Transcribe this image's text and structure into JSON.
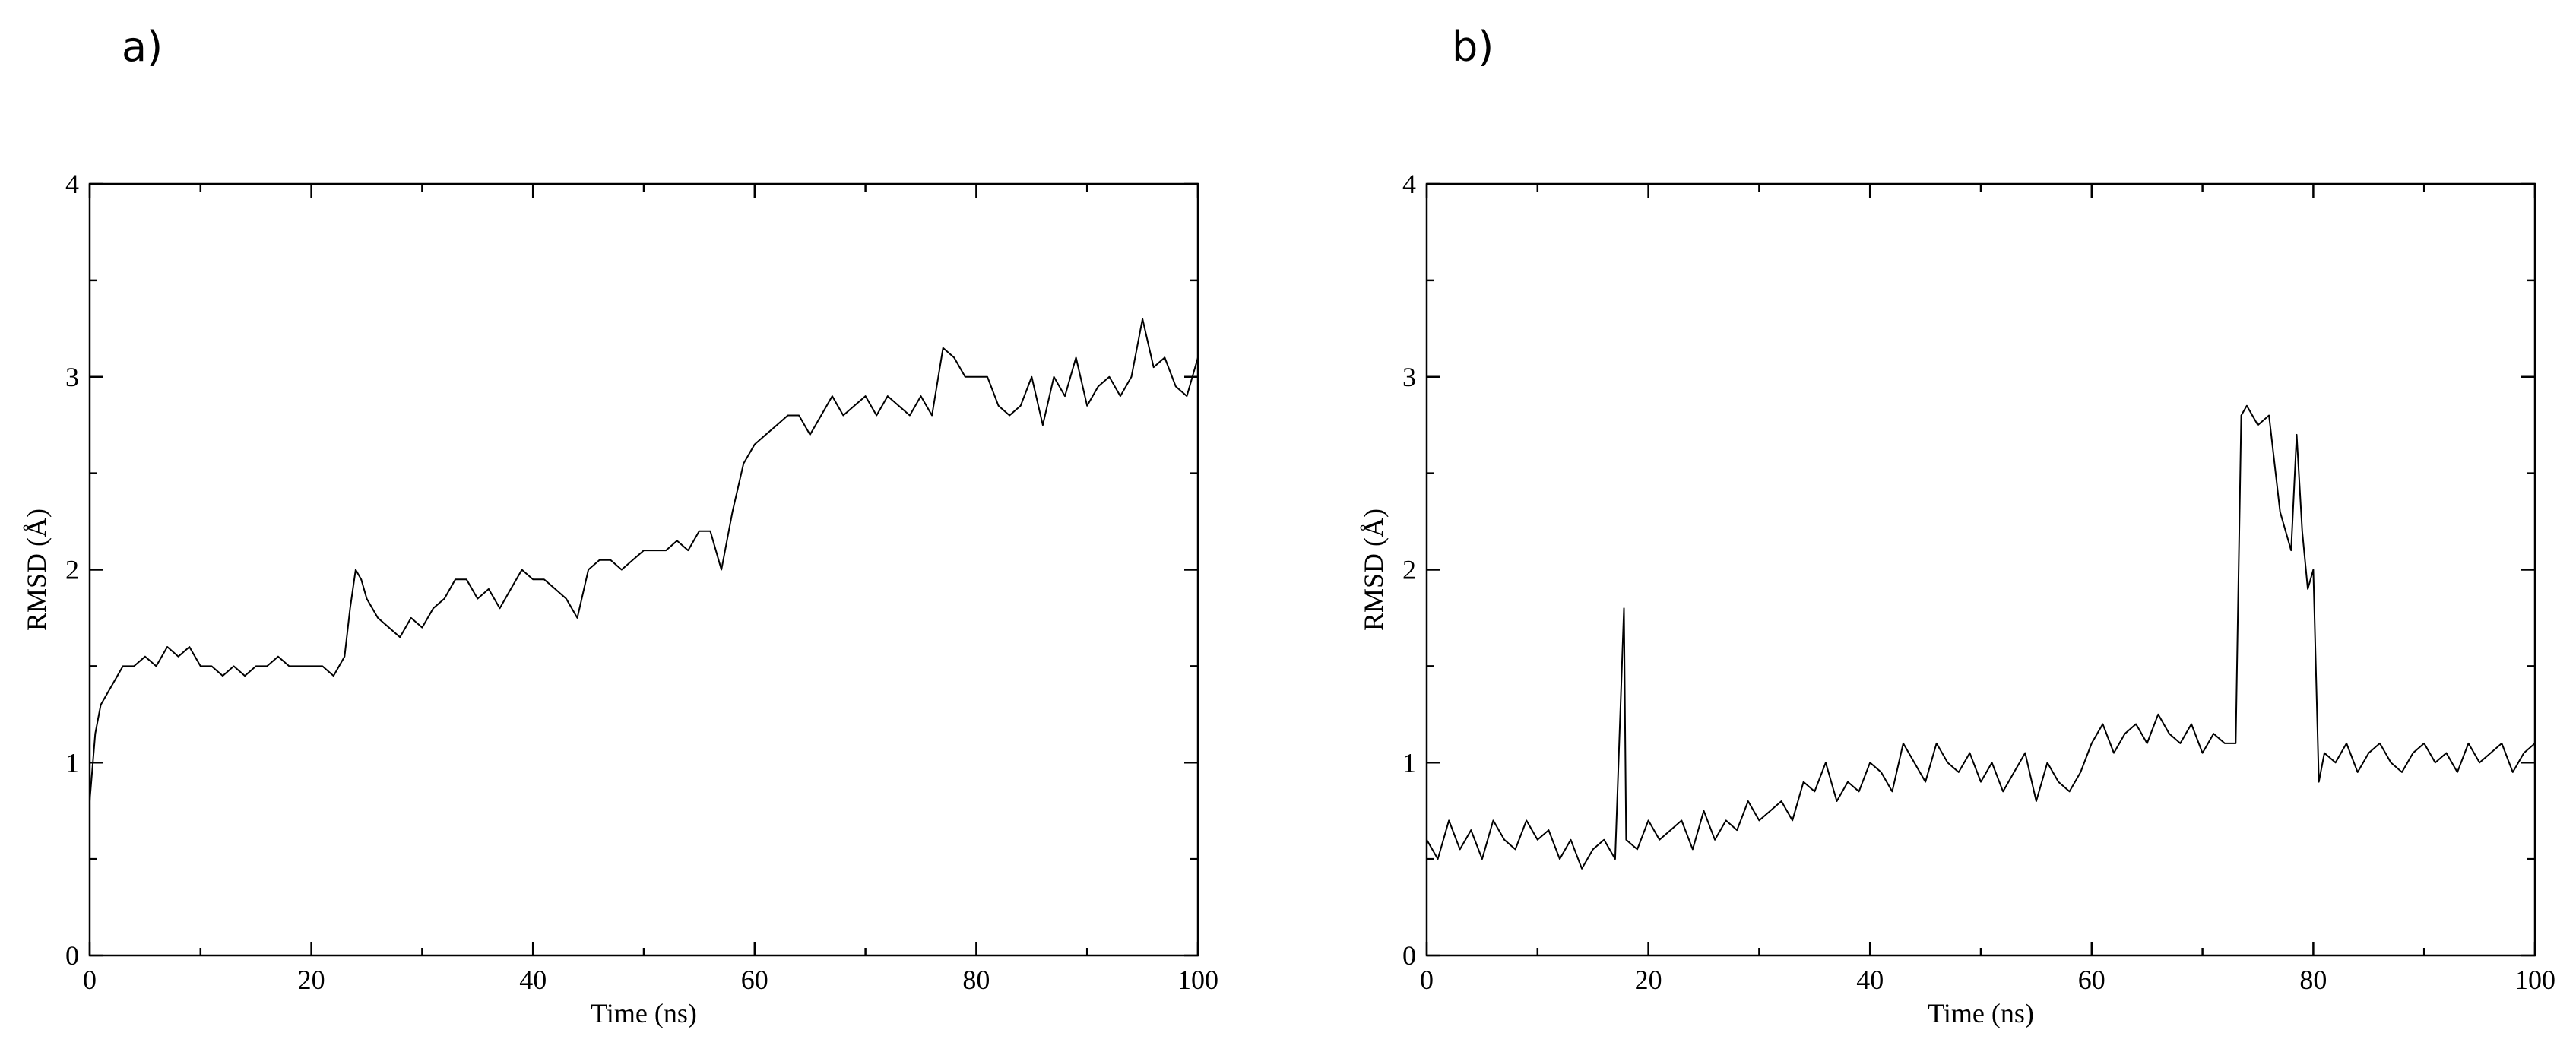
{
  "panels": [
    {
      "letter": "a)"
    },
    {
      "letter": "b)"
    }
  ],
  "chart_data": [
    {
      "type": "line",
      "panel": "a)",
      "title": "",
      "xlabel": "Time (ns)",
      "ylabel": "RMSD (Å)",
      "xlim": [
        0,
        100
      ],
      "ylim": [
        0,
        4
      ],
      "xticks": [
        0,
        20,
        40,
        60,
        80,
        100
      ],
      "xtick_labels": [
        "0",
        "20",
        "40",
        "60",
        "80",
        "100"
      ],
      "yticks": [
        0,
        1,
        2,
        3,
        4
      ],
      "ytick_labels": [
        "0",
        "1",
        "2",
        "3",
        "4"
      ],
      "grid": false,
      "legend": "none",
      "series_color": "#000000",
      "x": [
        0,
        0.5,
        1,
        2,
        3,
        4,
        5,
        6,
        7,
        8,
        9,
        10,
        11,
        12,
        13,
        14,
        15,
        16,
        17,
        18,
        19,
        20,
        21,
        22,
        23,
        23.5,
        24,
        24.5,
        25,
        26,
        27,
        28,
        29,
        30,
        31,
        32,
        33,
        34,
        35,
        36,
        37,
        38,
        39,
        40,
        41,
        42,
        43,
        44,
        45,
        46,
        47,
        48,
        49,
        50,
        51,
        52,
        53,
        54,
        55,
        56,
        57,
        58,
        59,
        60,
        61,
        62,
        63,
        64,
        65,
        66,
        67,
        68,
        69,
        70,
        71,
        72,
        73,
        74,
        75,
        76,
        77,
        78,
        79,
        80,
        81,
        82,
        83,
        84,
        85,
        86,
        87,
        88,
        89,
        90,
        91,
        92,
        93,
        94,
        95,
        96,
        97,
        98,
        99,
        100
      ],
      "y": [
        0.8,
        1.15,
        1.3,
        1.4,
        1.5,
        1.5,
        1.55,
        1.5,
        1.6,
        1.55,
        1.6,
        1.5,
        1.5,
        1.45,
        1.5,
        1.45,
        1.5,
        1.5,
        1.55,
        1.5,
        1.5,
        1.5,
        1.5,
        1.45,
        1.55,
        1.8,
        2.0,
        1.95,
        1.85,
        1.75,
        1.7,
        1.65,
        1.75,
        1.7,
        1.8,
        1.85,
        1.95,
        1.95,
        1.85,
        1.9,
        1.8,
        1.9,
        2.0,
        1.95,
        1.95,
        1.9,
        1.85,
        1.75,
        2.0,
        2.05,
        2.05,
        2.0,
        2.05,
        2.1,
        2.1,
        2.1,
        2.15,
        2.1,
        2.2,
        2.2,
        2.0,
        2.3,
        2.55,
        2.65,
        2.7,
        2.75,
        2.8,
        2.8,
        2.7,
        2.8,
        2.9,
        2.8,
        2.85,
        2.9,
        2.8,
        2.9,
        2.85,
        2.8,
        2.9,
        2.8,
        3.15,
        3.1,
        3.0,
        3.0,
        3.0,
        2.85,
        2.8,
        2.85,
        3.0,
        2.75,
        3.0,
        2.9,
        3.1,
        2.85,
        2.95,
        3.0,
        2.9,
        3.0,
        3.3,
        3.05,
        3.1,
        2.95,
        2.9,
        3.1
      ]
    },
    {
      "type": "line",
      "panel": "b)",
      "title": "",
      "xlabel": "Time (ns)",
      "ylabel": "RMSD (Å)",
      "xlim": [
        0,
        100
      ],
      "ylim": [
        0,
        4
      ],
      "xticks": [
        0,
        20,
        40,
        60,
        80,
        100
      ],
      "xtick_labels": [
        "0",
        "20",
        "40",
        "60",
        "80",
        "100"
      ],
      "yticks": [
        0,
        1,
        2,
        3,
        4
      ],
      "ytick_labels": [
        "0",
        "1",
        "2",
        "3",
        "4"
      ],
      "grid": false,
      "legend": "none",
      "series_color": "#000000",
      "x": [
        0,
        1,
        2,
        3,
        4,
        5,
        6,
        7,
        8,
        9,
        10,
        11,
        12,
        13,
        14,
        15,
        16,
        17,
        17.8,
        18,
        19,
        20,
        21,
        22,
        23,
        24,
        25,
        26,
        27,
        28,
        29,
        30,
        31,
        32,
        33,
        34,
        35,
        36,
        37,
        38,
        39,
        40,
        41,
        42,
        43,
        44,
        45,
        46,
        47,
        48,
        49,
        50,
        51,
        52,
        53,
        54,
        55,
        56,
        57,
        58,
        59,
        60,
        61,
        62,
        63,
        64,
        65,
        66,
        67,
        68,
        69,
        70,
        71,
        72,
        73,
        73.5,
        74,
        75,
        76,
        77,
        78,
        78.5,
        79,
        79.5,
        80,
        80.5,
        81,
        82,
        83,
        84,
        85,
        86,
        87,
        88,
        89,
        90,
        91,
        92,
        93,
        94,
        95,
        96,
        97,
        98,
        99,
        100
      ],
      "y": [
        0.6,
        0.5,
        0.7,
        0.55,
        0.65,
        0.5,
        0.7,
        0.6,
        0.55,
        0.7,
        0.6,
        0.65,
        0.5,
        0.6,
        0.45,
        0.55,
        0.6,
        0.5,
        1.8,
        0.6,
        0.55,
        0.7,
        0.6,
        0.65,
        0.7,
        0.55,
        0.75,
        0.6,
        0.7,
        0.65,
        0.8,
        0.7,
        0.75,
        0.8,
        0.7,
        0.9,
        0.85,
        1.0,
        0.8,
        0.9,
        0.85,
        1.0,
        0.95,
        0.85,
        1.1,
        1.0,
        0.9,
        1.1,
        1.0,
        0.95,
        1.05,
        0.9,
        1.0,
        0.85,
        0.95,
        1.05,
        0.8,
        1.0,
        0.9,
        0.85,
        0.95,
        1.1,
        1.2,
        1.05,
        1.15,
        1.2,
        1.1,
        1.25,
        1.15,
        1.1,
        1.2,
        1.05,
        1.15,
        1.1,
        1.1,
        2.8,
        2.85,
        2.75,
        2.8,
        2.3,
        2.1,
        2.7,
        2.2,
        1.9,
        2.0,
        0.9,
        1.05,
        1.0,
        1.1,
        0.95,
        1.05,
        1.1,
        1.0,
        0.95,
        1.05,
        1.1,
        1.0,
        1.05,
        0.95,
        1.1,
        1.0,
        1.05,
        1.1,
        0.95,
        1.05,
        1.1
      ]
    }
  ]
}
